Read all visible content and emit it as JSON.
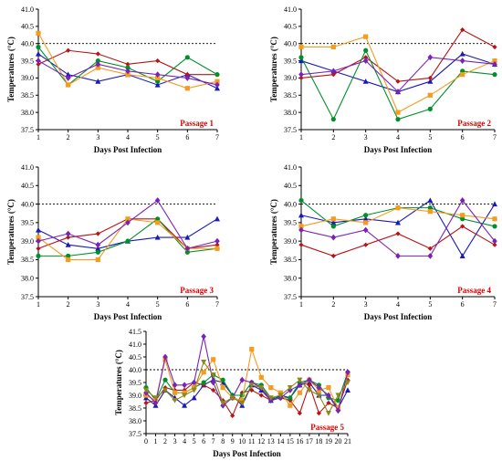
{
  "chart_data": [
    {
      "type": "line",
      "title": "",
      "panel_label": "Passage 1",
      "xlabel": "Days Post Infection",
      "ylabel": "Temperatures (°C)",
      "x": [
        1,
        2,
        3,
        4,
        5,
        6,
        7
      ],
      "xlim": [
        1,
        7
      ],
      "ylim": [
        37.5,
        41.0
      ],
      "yticks": [
        "37.5",
        "38.0",
        "38.5",
        "39.0",
        "39.5",
        "40.0",
        "40.5",
        "41.0"
      ],
      "reference_line": 40.0,
      "series": [
        {
          "color": "#1a1ab8",
          "marker": "triangle",
          "values": [
            39.7,
            39.1,
            38.9,
            39.1,
            38.8,
            39.1,
            38.7
          ]
        },
        {
          "color": "#b81414",
          "marker": "diamond",
          "values": [
            39.4,
            39.8,
            39.7,
            39.4,
            39.5,
            39.1,
            39.1
          ]
        },
        {
          "color": "#00902a",
          "marker": "circle",
          "values": [
            39.9,
            38.8,
            39.5,
            39.3,
            38.9,
            39.6,
            39.1
          ]
        },
        {
          "color": "#f59b1e",
          "marker": "square",
          "values": [
            40.3,
            38.8,
            39.3,
            39.1,
            39.0,
            38.7,
            38.9
          ]
        },
        {
          "color": "#7a22b8",
          "marker": "diamond-lg",
          "values": [
            39.5,
            39.0,
            39.4,
            39.2,
            39.1,
            39.0,
            38.8
          ]
        }
      ]
    },
    {
      "type": "line",
      "title": "",
      "panel_label": "Passage 2",
      "xlabel": "Days Post Infection",
      "ylabel": "Temperatures (°C)",
      "x": [
        1,
        2,
        3,
        4,
        5,
        6,
        7
      ],
      "xlim": [
        1,
        7
      ],
      "ylim": [
        37.5,
        41.0
      ],
      "yticks": [
        "37.5",
        "38.0",
        "38.5",
        "39.0",
        "39.5",
        "40.0",
        "40.5",
        "41.0"
      ],
      "reference_line": 40.0,
      "series": [
        {
          "color": "#1a1ab8",
          "marker": "triangle",
          "values": [
            39.5,
            39.2,
            38.9,
            38.6,
            38.9,
            39.7,
            39.4
          ]
        },
        {
          "color": "#b81414",
          "marker": "diamond",
          "values": [
            39.0,
            39.1,
            39.6,
            38.9,
            39.0,
            40.4,
            39.9
          ]
        },
        {
          "color": "#00902a",
          "marker": "circle",
          "values": [
            39.6,
            37.8,
            39.8,
            37.8,
            38.1,
            39.2,
            39.1
          ]
        },
        {
          "color": "#f59b1e",
          "marker": "square",
          "values": [
            39.9,
            39.9,
            40.2,
            38.0,
            38.5,
            39.1,
            39.5
          ]
        },
        {
          "color": "#7a22b8",
          "marker": "diamond-lg",
          "values": [
            39.1,
            39.2,
            39.5,
            38.6,
            39.6,
            39.5,
            39.4
          ]
        }
      ]
    },
    {
      "type": "line",
      "title": "",
      "panel_label": "Passage 3",
      "xlabel": "Days Post Infection",
      "ylabel": "Temperatures (°C)",
      "x": [
        1,
        2,
        3,
        4,
        5,
        6,
        7
      ],
      "xlim": [
        1,
        7
      ],
      "ylim": [
        37.5,
        41.0
      ],
      "yticks": [
        "37.5",
        "38.0",
        "38.5",
        "39.0",
        "39.5",
        "40.0",
        "40.5",
        "41.0"
      ],
      "reference_line": 40.0,
      "series": [
        {
          "color": "#1a1ab8",
          "marker": "triangle",
          "values": [
            39.3,
            38.9,
            38.8,
            39.0,
            39.1,
            39.1,
            39.6
          ]
        },
        {
          "color": "#b81414",
          "marker": "diamond",
          "values": [
            38.8,
            39.1,
            39.2,
            39.6,
            39.6,
            38.8,
            38.9
          ]
        },
        {
          "color": "#00902a",
          "marker": "circle",
          "values": [
            38.6,
            38.6,
            38.7,
            39.0,
            39.6,
            38.7,
            38.8
          ]
        },
        {
          "color": "#f59b1e",
          "marker": "square",
          "values": [
            39.1,
            38.5,
            38.5,
            39.6,
            39.5,
            38.8,
            38.8
          ]
        },
        {
          "color": "#7a22b8",
          "marker": "diamond-lg",
          "values": [
            39.0,
            39.2,
            38.9,
            39.5,
            40.1,
            38.8,
            39.0
          ]
        }
      ]
    },
    {
      "type": "line",
      "title": "",
      "panel_label": "Passage 4",
      "xlabel": "Days Post Infection",
      "ylabel": "Temperatures (°C)",
      "x": [
        1,
        2,
        3,
        4,
        5,
        6,
        7
      ],
      "xlim": [
        1,
        7
      ],
      "ylim": [
        37.5,
        41.0
      ],
      "yticks": [
        "37.5",
        "38.0",
        "38.5",
        "39.0",
        "39.5",
        "40.0",
        "40.5",
        "41.0"
      ],
      "reference_line": 40.0,
      "series": [
        {
          "color": "#1a1ab8",
          "marker": "triangle",
          "values": [
            39.7,
            39.5,
            39.6,
            39.5,
            40.1,
            38.6,
            40.0
          ]
        },
        {
          "color": "#b81414",
          "marker": "diamond",
          "values": [
            38.9,
            38.6,
            38.9,
            39.2,
            38.8,
            39.4,
            38.9
          ]
        },
        {
          "color": "#00902a",
          "marker": "circle",
          "values": [
            40.1,
            39.4,
            39.7,
            39.9,
            39.9,
            39.6,
            39.4
          ]
        },
        {
          "color": "#f59b1e",
          "marker": "square",
          "values": [
            39.4,
            39.6,
            39.5,
            39.9,
            39.8,
            39.7,
            39.6
          ]
        },
        {
          "color": "#7a22b8",
          "marker": "diamond-lg",
          "values": [
            39.3,
            39.1,
            39.3,
            38.6,
            38.6,
            40.1,
            39.0
          ]
        }
      ]
    },
    {
      "type": "line",
      "title": "",
      "panel_label": "Passage 5",
      "xlabel": "Days Post Infection",
      "ylabel": "Temperatures (°C)",
      "x": [
        0,
        1,
        2,
        3,
        4,
        5,
        6,
        7,
        8,
        9,
        10,
        11,
        12,
        13,
        14,
        15,
        16,
        17,
        18,
        19,
        20,
        21
      ],
      "xlim": [
        0,
        21
      ],
      "ylim": [
        37.5,
        41.5
      ],
      "yticks": [
        "37.5",
        "38.0",
        "38.5",
        "39.0",
        "39.5",
        "40.0",
        "40.5",
        "41.0",
        "41.5"
      ],
      "reference_line": 40.0,
      "series": [
        {
          "color": "#1a1ab8",
          "marker": "triangle",
          "values": [
            38.9,
            38.6,
            39.2,
            38.9,
            38.6,
            38.9,
            39.4,
            39.6,
            39.5,
            39.0,
            38.6,
            39.4,
            39.2,
            38.8,
            39.0,
            38.9,
            39.4,
            39.5,
            39.0,
            39.0,
            38.5,
            39.2
          ]
        },
        {
          "color": "#b81414",
          "marker": "diamond",
          "values": [
            38.7,
            38.8,
            39.3,
            39.2,
            39.2,
            39.5,
            39.4,
            39.2,
            38.8,
            38.2,
            39.1,
            39.2,
            39.0,
            38.8,
            38.9,
            38.8,
            38.3,
            39.4,
            38.3,
            38.7,
            38.5,
            39.6
          ]
        },
        {
          "color": "#00902a",
          "marker": "circle",
          "values": [
            39.3,
            38.8,
            39.6,
            39.1,
            39.1,
            39.3,
            39.5,
            39.8,
            39.6,
            39.0,
            39.0,
            39.5,
            39.4,
            38.9,
            38.9,
            38.9,
            39.5,
            39.6,
            39.4,
            38.9,
            38.8,
            39.9
          ]
        },
        {
          "color": "#f59b1e",
          "marker": "square",
          "values": [
            39.0,
            38.8,
            40.4,
            39.1,
            39.1,
            39.3,
            39.9,
            40.4,
            39.3,
            38.9,
            38.8,
            40.8,
            39.7,
            39.3,
            39.1,
            38.6,
            39.1,
            39.6,
            39.2,
            39.3,
            38.5,
            39.8
          ]
        },
        {
          "color": "#7a22b8",
          "marker": "diamond-lg",
          "values": [
            39.1,
            38.7,
            40.5,
            39.4,
            39.4,
            39.5,
            41.3,
            39.5,
            38.6,
            38.9,
            39.6,
            39.5,
            39.3,
            38.8,
            38.9,
            39.2,
            39.4,
            39.6,
            39.3,
            39.0,
            38.4,
            39.9
          ]
        },
        {
          "color": "#8a8a1a",
          "marker": "triangle-down",
          "values": [
            39.2,
            38.9,
            39.2,
            38.8,
            39.0,
            39.2,
            40.3,
            39.8,
            38.7,
            38.9,
            38.7,
            39.4,
            39.3,
            38.9,
            39.0,
            39.3,
            39.6,
            39.2,
            39.0,
            38.3,
            39.0,
            39.5
          ]
        }
      ]
    }
  ]
}
